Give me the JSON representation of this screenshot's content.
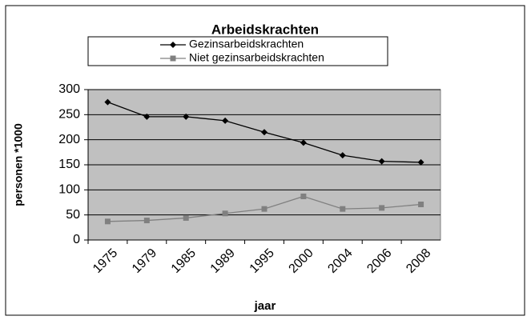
{
  "chart_data": {
    "type": "line",
    "title": "Arbeidskrachten",
    "categories": [
      "1975",
      "1979",
      "1985",
      "1989",
      "1995",
      "2000",
      "2004",
      "2006",
      "2008"
    ],
    "series": [
      {
        "name": "Gezinsarbeidskrachten",
        "color": "#000000",
        "marker": "diamond",
        "values": [
          275,
          246,
          246,
          238,
          215,
          194,
          169,
          157,
          155
        ]
      },
      {
        "name": "Niet gezinsarbeidskrachten",
        "color": "#808080",
        "marker": "square",
        "values": [
          37,
          39,
          44,
          53,
          62,
          87,
          62,
          64,
          71
        ]
      }
    ],
    "ylim": [
      0,
      300
    ],
    "yticks": [
      0,
      50,
      100,
      150,
      200,
      250,
      300
    ],
    "grid": true,
    "xlabel": "jaar",
    "ylabel": "personen *1000",
    "legend": "top",
    "plot_background": "#c0c0c0"
  }
}
